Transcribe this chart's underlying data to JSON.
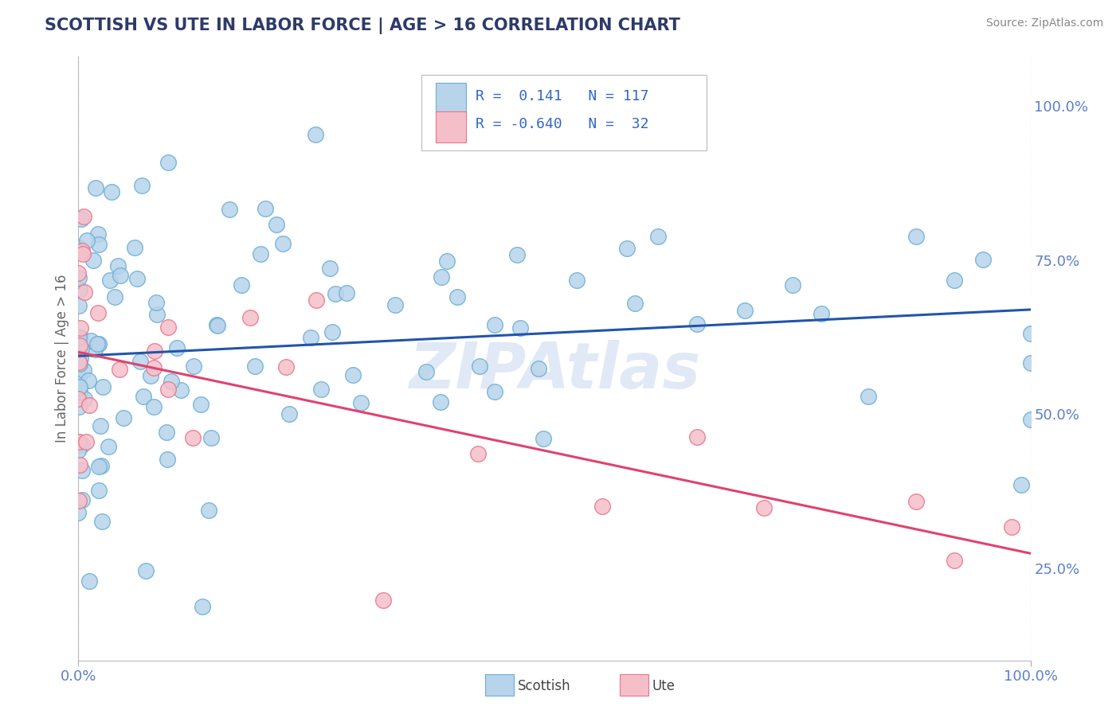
{
  "title": "SCOTTISH VS UTE IN LABOR FORCE | AGE > 16 CORRELATION CHART",
  "source_text": "Source: ZipAtlas.com",
  "ylabel": "In Labor Force | Age > 16",
  "xmin": 0.0,
  "xmax": 1.0,
  "ymin": 0.1,
  "ymax": 1.08,
  "scottish_color": "#b8d4ea",
  "scottish_edge": "#6aaed6",
  "ute_color": "#f5bfca",
  "ute_edge": "#e8748a",
  "regression_scottish_color": "#2255aa",
  "regression_ute_color": "#e0436e",
  "R_scottish": 0.141,
  "N_scottish": 117,
  "R_ute": -0.64,
  "N_ute": 32,
  "watermark": "ZIPAtlas",
  "background_color": "#ffffff",
  "grid_color": "#cccccc",
  "tick_label_color": "#5b7fcc",
  "title_color": "#2d3a6b"
}
